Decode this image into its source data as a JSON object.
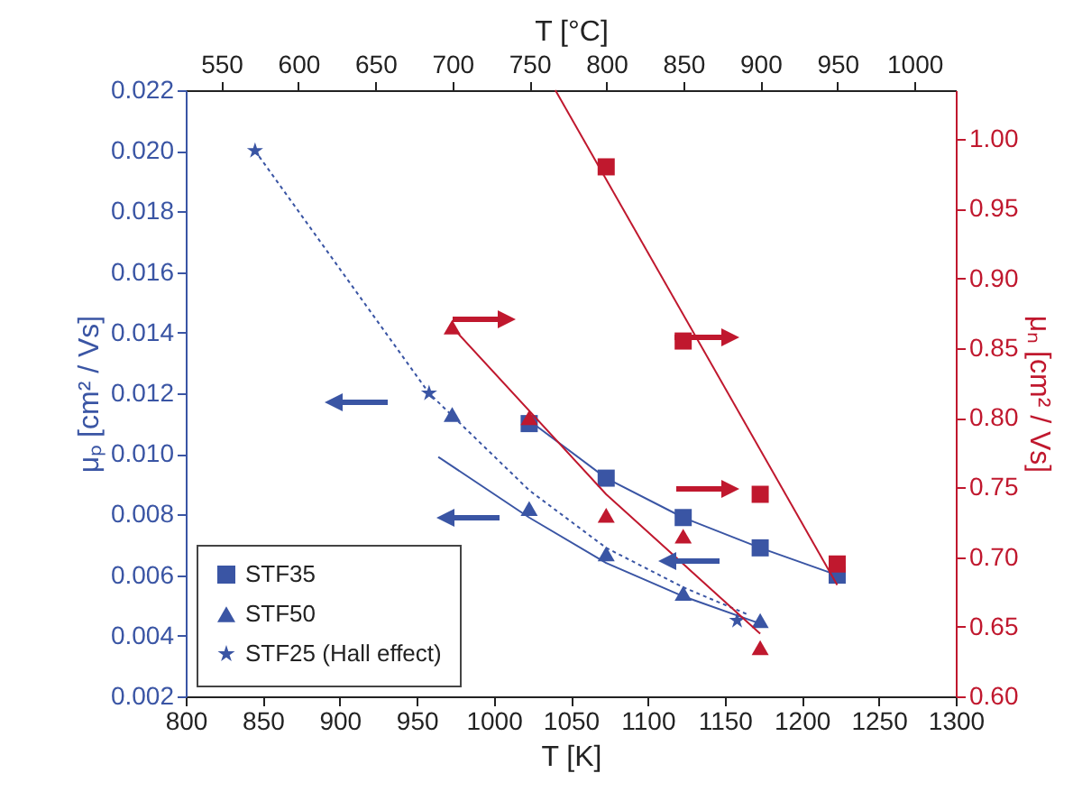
{
  "chart_data": {
    "type": "scatter",
    "xlabel": "T [K]",
    "ylabel": "μₚ [cm² / Vs]",
    "y2label": "μₙ [cm² / Vs]",
    "x2label": "T [°C]",
    "xlim": [
      800,
      1300
    ],
    "xticks": [
      800,
      850,
      900,
      950,
      1000,
      1050,
      1100,
      1150,
      1200,
      1250,
      1300
    ],
    "x2lim": [
      526.85,
      1026.85
    ],
    "x2ticks": [
      550,
      600,
      650,
      700,
      750,
      800,
      850,
      900,
      950,
      1000
    ],
    "ylim": [
      0.002,
      0.022
    ],
    "yticks": [
      0.002,
      0.004,
      0.006,
      0.008,
      {
        "value": 0.01,
        "label": "0.010"
      },
      0.012,
      0.014,
      0.016,
      0.018,
      {
        "value": 0.02,
        "label": "0.020"
      },
      0.022
    ],
    "y2lim": [
      0.6,
      1.035
    ],
    "y2ticks": [
      {
        "value": 0.6,
        "label": "0.60"
      },
      0.65,
      {
        "value": 0.7,
        "label": "0.70"
      },
      0.75,
      {
        "value": 0.8,
        "label": "0.80"
      },
      0.85,
      {
        "value": 0.9,
        "label": "0.90"
      },
      0.95,
      {
        "value": 1,
        "label": "1.00"
      }
    ],
    "legend": "bottom left",
    "grid": false,
    "series": [
      {
        "type": "line",
        "color": "#3a55a4",
        "line_style": "solid",
        "marker": "none",
        "x": [
          1023,
          1073,
          1123,
          1173,
          1223
        ],
        "values": [
          0.0111,
          0.0092,
          0.0079,
          0.0069,
          0.006
        ]
      },
      {
        "type": "line",
        "color": "#3a55a4",
        "line_style": "solid",
        "marker": "none",
        "x": [
          964,
          1023,
          1073,
          1123,
          1173
        ],
        "values": [
          0.0099,
          0.0079,
          0.0064,
          0.0053,
          0.0044
        ]
      },
      {
        "type": "line",
        "color": "#3a55a4",
        "line_style": "dotted",
        "marker": "none",
        "x": [
          845,
          958,
          1023,
          1073,
          1123,
          1165
        ],
        "values": [
          0.02,
          0.012,
          0.0088,
          0.0069,
          0.0056,
          0.0047
        ]
      },
      {
        "type": "line",
        "color": "#c0182e",
        "line_style": "solid",
        "marker": "none",
        "axis": "y2",
        "x": [
          1040,
          1223
        ],
        "values": [
          1.035,
          0.68
        ]
      },
      {
        "type": "line",
        "color": "#c0182e",
        "line_style": "solid",
        "marker": "none",
        "axis": "y2",
        "x": [
          973,
          1073,
          1173
        ],
        "values": [
          0.865,
          0.745,
          0.645
        ]
      },
      {
        "name": "STF35",
        "color": "#3a55a4",
        "marker": "square",
        "x": [
          1023,
          1073,
          1123,
          1173,
          1223
        ],
        "values": [
          0.011,
          0.0092,
          0.0079,
          0.0069,
          0.006
        ]
      },
      {
        "name": "STF50",
        "color": "#3a55a4",
        "marker": "triangle",
        "x": [
          973,
          1023,
          1073,
          1123,
          1173
        ],
        "values": [
          0.0113,
          0.0082,
          0.0067,
          0.0054,
          0.0045
        ]
      },
      {
        "name": "STF25 (Hall effect)",
        "color": "#3a55a4",
        "marker": "star",
        "x": [
          845,
          958,
          1158
        ],
        "values": [
          0.02,
          0.012,
          0.0045
        ]
      },
      {
        "color": "#c0182e",
        "marker": "square",
        "axis": "y2",
        "x": [
          1073,
          1123,
          1173,
          1223
        ],
        "values": [
          0.98,
          0.855,
          0.745,
          0.695
        ]
      },
      {
        "color": "#c0182e",
        "marker": "triangle",
        "axis": "y2",
        "x": [
          973,
          1023,
          1073,
          1123,
          1173
        ],
        "values": [
          0.865,
          0.8,
          0.73,
          0.715,
          0.635
        ]
      }
    ]
  }
}
